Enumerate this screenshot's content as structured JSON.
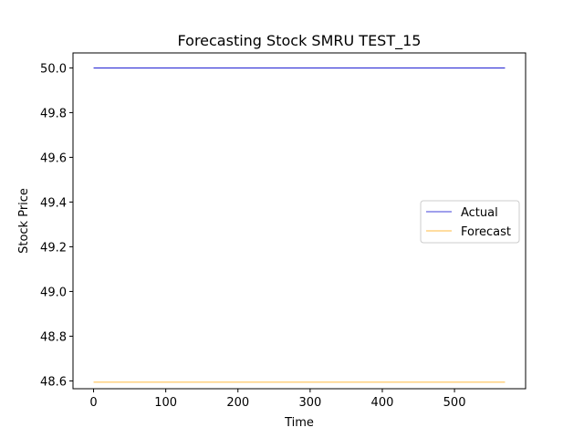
{
  "chart_data": {
    "type": "line",
    "title": "Forecasting Stock SMRU TEST_15",
    "xlabel": "Time",
    "ylabel": "Stock Price",
    "xlim": [
      -28.5,
      598.5
    ],
    "ylim": [
      48.565,
      50.067
    ],
    "xticks": [
      0,
      100,
      200,
      300,
      400,
      500
    ],
    "xtick_labels": [
      "0",
      "100",
      "200",
      "300",
      "400",
      "500"
    ],
    "yticks": [
      48.6,
      48.8,
      49.0,
      49.2,
      49.4,
      49.6,
      49.8,
      50.0
    ],
    "ytick_labels": [
      "48.6",
      "48.8",
      "49.0",
      "49.2",
      "49.4",
      "49.6",
      "49.8",
      "50.0"
    ],
    "grid": false,
    "legend_position": "center-right",
    "series": [
      {
        "name": "Actual",
        "color": "#0000cc",
        "x": [
          0,
          570
        ],
        "y": [
          50.0,
          50.0
        ]
      },
      {
        "name": "Forecast",
        "color": "#ffa500",
        "x": [
          0,
          570
        ],
        "y": [
          48.594,
          48.594
        ]
      }
    ]
  }
}
